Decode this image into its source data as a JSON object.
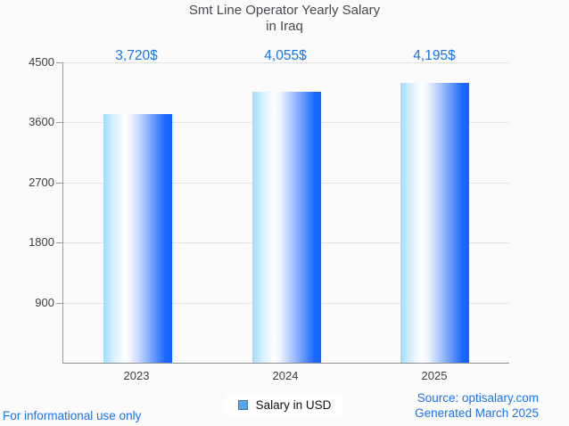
{
  "title": {
    "line1": "Smt Line Operator Yearly Salary",
    "line2": "in Iraq"
  },
  "chart_data": {
    "type": "bar",
    "title": "Smt Line Operator Yearly Salary in Iraq",
    "categories": [
      "2023",
      "2024",
      "2025"
    ],
    "series": [
      {
        "name": "Salary in USD",
        "values": [
          3720,
          4055,
          4195
        ]
      }
    ],
    "value_labels": [
      "3,720$",
      "4,055$",
      "4,195$"
    ],
    "xlabel": "",
    "ylabel": "",
    "ylim": [
      0,
      4500
    ],
    "yticks": [
      900,
      1800,
      2700,
      3600,
      4500
    ],
    "grid": true,
    "legend_position": "bottom"
  },
  "legend": {
    "label": "Salary in USD",
    "marker_fill": "#57a4f1",
    "marker_border": "#44749f"
  },
  "footer": {
    "left": "For informational use only",
    "source": "Source: optisalary.com",
    "generated": "Generated March 2025"
  },
  "colors": {
    "accent_blue": "#1a73e8",
    "title_text": "#46494e",
    "axis_text": "#3d4045",
    "gridline": "#e3e3e3",
    "axis_line": "#9b9b9b",
    "background": "#fbfbfb",
    "bar_gradient_left": "#9edbff",
    "bar_gradient_mid": "#ffffff",
    "bar_gradient_right": "#1263ff"
  }
}
